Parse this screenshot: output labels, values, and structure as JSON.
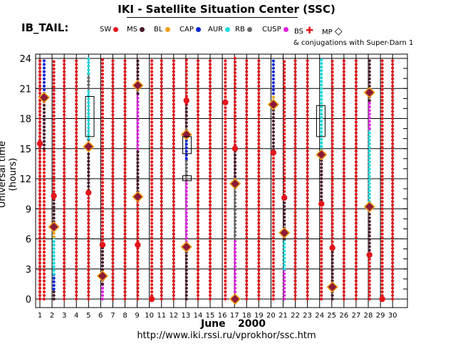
{
  "header": {
    "title": "IKI - Satellite Situation Center (SSC)",
    "subtitle": "IB_TAIL:",
    "conjugations_note": "& conjugations with Super-Darn 1",
    "url": "http://www.iki.rssi.ru/vprokhor/ssc.htm"
  },
  "legend": [
    {
      "key": "SW",
      "label": "SW",
      "color": "#e4141b"
    },
    {
      "key": "MS",
      "label": "MS",
      "color": "#4a1a2c"
    },
    {
      "key": "BL",
      "label": "BL",
      "color": "#f0a018"
    },
    {
      "key": "CAP",
      "label": "CAP",
      "color": "#0a24d6"
    },
    {
      "key": "AUR",
      "label": "AUR",
      "color": "#1adcdc"
    },
    {
      "key": "RB",
      "label": "RB",
      "color": "#6a6a6a"
    },
    {
      "key": "CUSP",
      "label": "CUSP",
      "color": "#e020e0"
    },
    {
      "key": "BS",
      "label": "BS",
      "color": "#e4141b"
    },
    {
      "key": "MP",
      "label": "MP",
      "color": "#8b1a3a"
    }
  ],
  "chart_data": {
    "type": "scatter",
    "title": "IKI - Satellite Situation Center (SSC)",
    "xlabel_month": "June",
    "xlabel_year": "2000",
    "ylabel": "Universal time (hours)",
    "x_ticks": [
      1,
      2,
      3,
      4,
      5,
      6,
      7,
      8,
      9,
      10,
      11,
      12,
      13,
      14,
      15,
      16,
      17,
      18,
      19,
      20,
      21,
      22,
      23,
      24,
      25,
      26,
      27,
      28,
      29,
      30
    ],
    "y_ticks": [
      0,
      3,
      6,
      9,
      12,
      15,
      18,
      21,
      24
    ],
    "xlim": [
      1,
      30.4
    ],
    "ylim": [
      0,
      24
    ],
    "region_colors": {
      "SW": "#e4141b",
      "MS": "#4a1a2c",
      "BL": "#f0a018",
      "CAP": "#0a24d6",
      "AUR": "#1adcdc",
      "RB": "#6a6a6a",
      "CUSP": "#e020e0"
    },
    "day_segments": [
      {
        "day": 1,
        "segments": [
          [
            "SW",
            0,
            24
          ]
        ]
      },
      {
        "day": 1.35,
        "segments": [
          [
            "SW",
            0,
            15
          ],
          [
            "MS",
            15,
            19.8
          ],
          [
            "CAP",
            19.8,
            24
          ]
        ]
      },
      {
        "day": 2.15,
        "segments": [
          [
            "MS",
            0,
            1
          ],
          [
            "CAP",
            1,
            2.5
          ],
          [
            "AUR",
            2.5,
            6.2
          ],
          [
            "BL",
            6.2,
            7
          ],
          [
            "MS",
            7,
            10
          ],
          [
            "SW",
            10,
            24
          ]
        ]
      },
      {
        "day": 3,
        "segments": [
          [
            "SW",
            0,
            24
          ]
        ]
      },
      {
        "day": 4,
        "segments": [
          [
            "SW",
            0,
            24
          ]
        ]
      },
      {
        "day": 5,
        "segments": [
          [
            "SW",
            0,
            10.5
          ],
          [
            "MS",
            10.5,
            16
          ],
          [
            "AUR",
            16,
            21
          ],
          [
            "RB",
            21,
            22.5
          ],
          [
            "AUR",
            22.5,
            24
          ]
        ]
      },
      {
        "day": 6.15,
        "segments": [
          [
            "CUSP",
            0,
            1.5
          ],
          [
            "MS",
            1.5,
            5.5
          ],
          [
            "SW",
            5.5,
            24
          ]
        ]
      },
      {
        "day": 7,
        "segments": [
          [
            "SW",
            0,
            24
          ]
        ]
      },
      {
        "day": 8,
        "segments": [
          [
            "SW",
            0,
            24
          ]
        ]
      },
      {
        "day": 9.05,
        "segments": [
          [
            "SW",
            0,
            10
          ],
          [
            "MS",
            10,
            15
          ],
          [
            "CUSP",
            15,
            20.5
          ],
          [
            "MS",
            20.5,
            24
          ]
        ]
      },
      {
        "day": 10.2,
        "segments": [
          [
            "SW",
            0,
            24
          ]
        ]
      },
      {
        "day": 11,
        "segments": [
          [
            "SW",
            0,
            24
          ]
        ]
      },
      {
        "day": 12,
        "segments": [
          [
            "SW",
            0,
            24
          ]
        ]
      },
      {
        "day": 13.05,
        "segments": [
          [
            "MS",
            0,
            5
          ],
          [
            "CUSP",
            5,
            12
          ],
          [
            "RB",
            12,
            14
          ],
          [
            "CAP",
            14,
            16.5
          ],
          [
            "MS",
            16.5,
            19.5
          ],
          [
            "SW",
            19.5,
            24
          ]
        ]
      },
      {
        "day": 14,
        "segments": [
          [
            "SW",
            0,
            24
          ]
        ]
      },
      {
        "day": 15,
        "segments": [
          [
            "SW",
            0,
            24
          ]
        ]
      },
      {
        "day": 16.25,
        "segments": [
          [
            "SW",
            0,
            24
          ]
        ]
      },
      {
        "day": 17.05,
        "segments": [
          [
            "CUSP",
            0,
            6
          ],
          [
            "RB",
            6,
            11.5
          ],
          [
            "MS",
            11.5,
            15
          ],
          [
            "SW",
            15,
            24
          ]
        ]
      },
      {
        "day": 18,
        "segments": [
          [
            "SW",
            0,
            24
          ]
        ]
      },
      {
        "day": 19,
        "segments": [
          [
            "SW",
            0,
            24
          ]
        ]
      },
      {
        "day": 20.2,
        "segments": [
          [
            "SW",
            0,
            14.5
          ],
          [
            "MS",
            14.5,
            19.4
          ],
          [
            "BL",
            19.4,
            20.5
          ],
          [
            "CAP",
            20.5,
            24
          ]
        ]
      },
      {
        "day": 21.1,
        "segments": [
          [
            "CUSP",
            0,
            3
          ],
          [
            "AUR",
            3,
            6
          ],
          [
            "MS",
            6,
            10
          ],
          [
            "SW",
            10,
            24
          ]
        ]
      },
      {
        "day": 22,
        "segments": [
          [
            "SW",
            0,
            24
          ]
        ]
      },
      {
        "day": 23,
        "segments": [
          [
            "SW",
            0,
            24
          ]
        ]
      },
      {
        "day": 24.15,
        "segments": [
          [
            "SW",
            0,
            9.5
          ],
          [
            "MS",
            9.5,
            14.5
          ],
          [
            "AUR",
            14.5,
            24
          ]
        ]
      },
      {
        "day": 25.05,
        "segments": [
          [
            "MS",
            0,
            5
          ],
          [
            "SW",
            5,
            24
          ]
        ]
      },
      {
        "day": 26,
        "segments": [
          [
            "SW",
            0,
            24
          ]
        ]
      },
      {
        "day": 27,
        "segments": [
          [
            "SW",
            0,
            24
          ]
        ]
      },
      {
        "day": 28.1,
        "segments": [
          [
            "SW",
            0,
            4.5
          ],
          [
            "MS",
            4.5,
            9
          ],
          [
            "AUR",
            9,
            17
          ],
          [
            "CUSP",
            17,
            19.8
          ],
          [
            "MS",
            19.8,
            24
          ]
        ]
      },
      {
        "day": 29.15,
        "segments": [
          [
            "SW",
            0,
            24
          ]
        ]
      },
      {
        "day": 30,
        "segments": [
          [
            "SW",
            0,
            24
          ]
        ]
      }
    ],
    "mp_crossings": [
      {
        "day": 1.35,
        "ut": 20.1
      },
      {
        "day": 2.15,
        "ut": 7.2
      },
      {
        "day": 5.0,
        "ut": 15.2
      },
      {
        "day": 6.15,
        "ut": 2.3
      },
      {
        "day": 9.05,
        "ut": 10.2
      },
      {
        "day": 9.05,
        "ut": 21.3
      },
      {
        "day": 13.05,
        "ut": 5.2
      },
      {
        "day": 13.05,
        "ut": 16.4
      },
      {
        "day": 17.05,
        "ut": 11.5
      },
      {
        "day": 17.05,
        "ut": 0.0
      },
      {
        "day": 20.2,
        "ut": 19.4
      },
      {
        "day": 21.1,
        "ut": 6.6
      },
      {
        "day": 24.15,
        "ut": 14.4
      },
      {
        "day": 25.05,
        "ut": 1.2
      },
      {
        "day": 28.1,
        "ut": 9.2
      },
      {
        "day": 28.1,
        "ut": 20.6
      }
    ],
    "bs_crossings": [
      {
        "day": 1.0,
        "ut": 15.5
      },
      {
        "day": 2.15,
        "ut": 10.3
      },
      {
        "day": 5.0,
        "ut": 10.6
      },
      {
        "day": 6.15,
        "ut": 5.4
      },
      {
        "day": 9.05,
        "ut": 5.4
      },
      {
        "day": 10.2,
        "ut": 0.0
      },
      {
        "day": 13.05,
        "ut": 19.8
      },
      {
        "day": 16.25,
        "ut": 19.6
      },
      {
        "day": 17.05,
        "ut": 15.0
      },
      {
        "day": 20.2,
        "ut": 14.6
      },
      {
        "day": 21.1,
        "ut": 10.1
      },
      {
        "day": 24.15,
        "ut": 9.5
      },
      {
        "day": 25.05,
        "ut": 5.1
      },
      {
        "day": 28.1,
        "ut": 4.4
      },
      {
        "day": 29.15,
        "ut": 0.0
      }
    ],
    "conjugation_boxes": [
      {
        "day": 5.1,
        "ut_start": 16.2,
        "ut_end": 20.2
      },
      {
        "day": 13.1,
        "ut_start": 14.5,
        "ut_end": 16.2
      },
      {
        "day": 13.1,
        "ut_start": 11.8,
        "ut_end": 12.3
      },
      {
        "day": 24.1,
        "ut_start": 16.2,
        "ut_end": 19.3
      }
    ]
  }
}
